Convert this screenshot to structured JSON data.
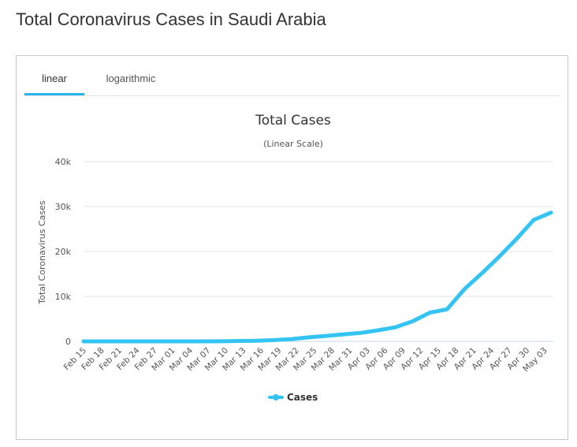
{
  "page": {
    "title": "Total Coronavirus Cases in Saudi Arabia"
  },
  "tabs": [
    {
      "label": "linear",
      "active": true
    },
    {
      "label": "logarithmic",
      "active": false
    }
  ],
  "colors": {
    "series": "#33c4f3",
    "tab_accent": "#2bb5ec",
    "grid": "#e6e6e6"
  },
  "chart_data": {
    "type": "line",
    "title": "Total Cases",
    "subtitle": "(Linear Scale)",
    "ylabel": "Total Coronavirus Cases",
    "xlabel": "",
    "ylim": [
      0,
      40000
    ],
    "y_ticks": [
      0,
      10000,
      20000,
      30000,
      40000
    ],
    "y_tick_labels": [
      "0",
      "10k",
      "20k",
      "30k",
      "40k"
    ],
    "x_tick_labels": [
      "Feb 15",
      "Feb 18",
      "Feb 21",
      "Feb 24",
      "Feb 27",
      "Mar 01",
      "Mar 04",
      "Mar 07",
      "Mar 10",
      "Mar 13",
      "Mar 16",
      "Mar 19",
      "Mar 22",
      "Mar 25",
      "Mar 28",
      "Mar 31",
      "Apr 03",
      "Apr 06",
      "Apr 09",
      "Apr 12",
      "Apr 15",
      "Apr 18",
      "Apr 21",
      "Apr 24",
      "Apr 27",
      "Apr 30",
      "May 03"
    ],
    "grid": true,
    "legend_position": "bottom-center",
    "series": [
      {
        "name": "Cases",
        "x": [
          "Feb 15",
          "Feb 18",
          "Feb 21",
          "Feb 24",
          "Feb 27",
          "Mar 01",
          "Mar 04",
          "Mar 07",
          "Mar 10",
          "Mar 13",
          "Mar 16",
          "Mar 19",
          "Mar 22",
          "Mar 25",
          "Mar 28",
          "Mar 31",
          "Apr 03",
          "Apr 06",
          "Apr 09",
          "Apr 12",
          "Apr 15",
          "Apr 18",
          "Apr 21",
          "Apr 24",
          "Apr 27",
          "Apr 30",
          "May 03",
          "May 04"
        ],
        "values": [
          0,
          0,
          0,
          0,
          0,
          0,
          1,
          5,
          20,
          86,
          133,
          274,
          511,
          900,
          1203,
          1563,
          1885,
          2463,
          3121,
          4462,
          6380,
          7142,
          11631,
          15102,
          18811,
          22753,
          27011,
          28656
        ]
      }
    ]
  }
}
